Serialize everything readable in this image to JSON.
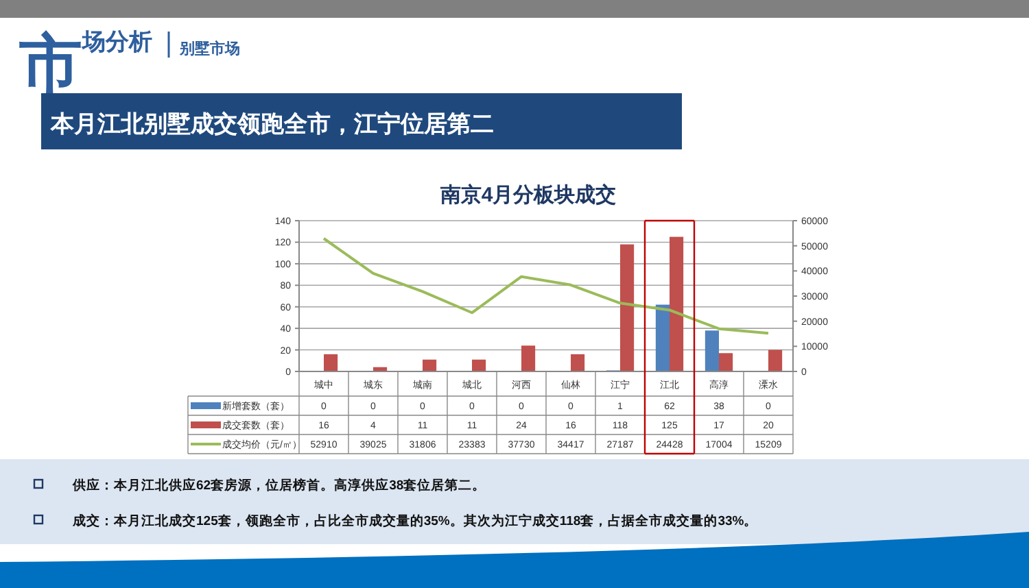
{
  "chart_data": {
    "type": "bar",
    "title": "南京4月分板块成交",
    "subtitle": "本月江北别墅成交领跑全市，江宁位居第二",
    "annotations": [
      "市场分析",
      "别墅市场",
      "供应：本月江北供应62套房源，位居榜首。高淳供应38套位居第二。",
      "成交：本月江北成交125套，领跑全市，占比全市成交量的35%。其次为江宁成交118套，占据全市成交量的33%。"
    ],
    "categories": [
      "城中",
      "城东",
      "城南",
      "城北",
      "河西",
      "仙林",
      "江宁",
      "江北",
      "高淳",
      "溧水"
    ],
    "series": [
      {
        "name": "新增套数（套）",
        "color": "#4f81bd",
        "values": [
          0,
          0,
          0,
          0,
          0,
          0,
          1,
          62,
          38,
          0
        ]
      },
      {
        "name": "成交套数（套）",
        "color": "#c0504d",
        "values": [
          16,
          4,
          11,
          11,
          24,
          16,
          118,
          125,
          17,
          20
        ]
      },
      {
        "name": "成交均价（元/㎡）",
        "type": "line",
        "axis": "y2",
        "color": "#9bbb59",
        "values": [
          52910,
          39025,
          31806,
          23383,
          37730,
          34417,
          27187,
          24428,
          17004,
          15209
        ]
      }
    ],
    "ylim": [
      0,
      140
    ],
    "yticks": [
      0,
      20,
      40,
      60,
      80,
      100,
      120,
      140
    ],
    "y2lim": [
      0,
      60000
    ],
    "y2ticks": [
      0,
      10000,
      20000,
      30000,
      40000,
      50000,
      60000
    ],
    "grid": "y",
    "legend": "bottom",
    "data_labels": true
  }
}
